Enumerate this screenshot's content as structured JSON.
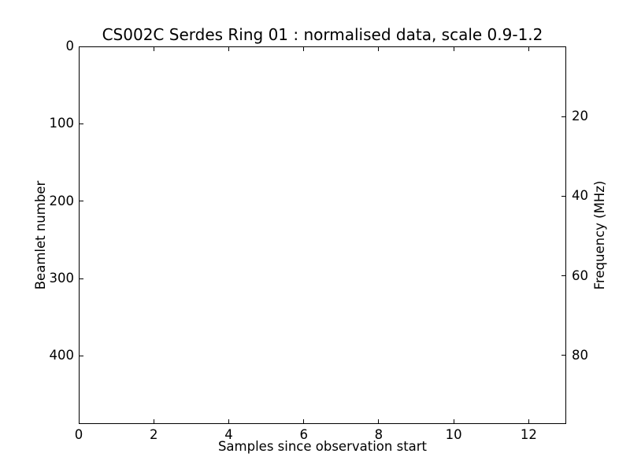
{
  "colors": {
    "foreground": "#000000",
    "background": "#ffffff"
  },
  "chart_data": {
    "type": "heatmap",
    "title": "CS002C Serdes Ring 01 : normalised data, scale 0.9-1.2",
    "xlabel": "Samples since observation start",
    "ylabel_left": "Beamlet number",
    "ylabel_right": "Frequency (MHz)",
    "x_ticks": [
      0,
      2,
      4,
      6,
      8,
      10,
      12
    ],
    "xlim": [
      0,
      13
    ],
    "y_left_ticks": [
      0,
      100,
      200,
      300,
      400
    ],
    "ylim_left": [
      0,
      488
    ],
    "y_right_ticks": [
      20,
      40,
      60,
      80
    ],
    "ylim_right": [
      2.4,
      97.2
    ],
    "grid": false,
    "legend": false,
    "values": [],
    "plot_area_blank": true,
    "tick_direction": "in",
    "ticks_on_all_spines": true
  }
}
